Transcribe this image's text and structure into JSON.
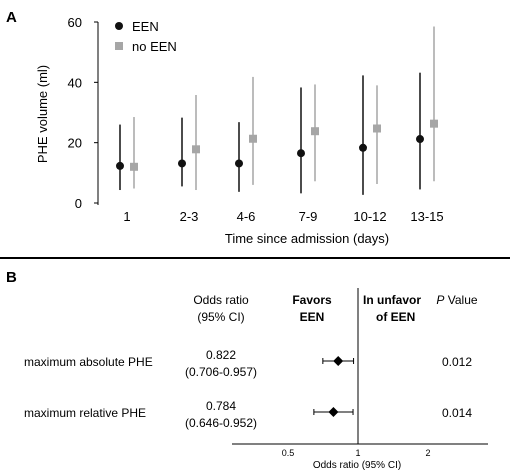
{
  "panel_a": {
    "label": "A",
    "ylabel": "PHE volume (ml)",
    "xlabel": "Time since admission (days)",
    "legend": [
      {
        "name": "EEN",
        "color": "#111111",
        "marker": "circle"
      },
      {
        "name": "no EEN",
        "color": "#a6a6a6",
        "marker": "square"
      }
    ]
  },
  "chart_data": [
    {
      "type": "scatter",
      "subtype": "point-range",
      "xlabel": "Time since admission (days)",
      "ylabel": "PHE volume (ml)",
      "ylim": [
        0,
        60
      ],
      "yticks": [
        0,
        20,
        40,
        60
      ],
      "categories": [
        "1",
        "2-3",
        "4-6",
        "7-9",
        "10-12",
        "13-15"
      ],
      "legend_position": "top-left",
      "grid": false,
      "series": [
        {
          "name": "EEN",
          "color": "#111111",
          "marker": "circle",
          "values": [
            12.3,
            13.1,
            13.1,
            16.5,
            18.3,
            21.2
          ],
          "lower": [
            4.3,
            5.5,
            3.7,
            3.2,
            2.7,
            4.5
          ],
          "upper": [
            26.0,
            28.3,
            26.8,
            38.3,
            42.3,
            43.2
          ]
        },
        {
          "name": "no EEN",
          "color": "#a6a6a6",
          "marker": "square",
          "values": [
            12.0,
            17.8,
            21.3,
            23.8,
            24.7,
            26.3
          ],
          "lower": [
            4.8,
            4.3,
            6.0,
            7.2,
            6.3,
            7.2
          ],
          "upper": [
            28.5,
            35.8,
            41.8,
            39.3,
            39.0,
            58.5
          ]
        }
      ]
    },
    {
      "type": "scatter",
      "subtype": "forest",
      "xscale": "log",
      "xlabel": "Odds ratio (95% CI)",
      "xticks": [
        0.5,
        1,
        2
      ],
      "xlim": [
        0.25,
        4
      ],
      "reference_line": 1,
      "rows": [
        {
          "label": "maximum absolute PHE",
          "or": 0.822,
          "ci_text": "(0.706-0.957)",
          "lower": 0.706,
          "upper": 0.957,
          "p": "0.012"
        },
        {
          "label": "maximum relative PHE",
          "or": 0.784,
          "ci_text": "(0.646-0.952)",
          "lower": 0.646,
          "upper": 0.952,
          "p": "0.014"
        }
      ]
    }
  ],
  "panel_b": {
    "label": "B",
    "col_or": [
      "Odds ratio",
      "(95% CI)"
    ],
    "favors": [
      "Favors",
      "EEN"
    ],
    "unfavor": [
      "In unfavor",
      "of EEN"
    ],
    "pvalue_p": "P",
    "pvalue_rest": " Value"
  }
}
